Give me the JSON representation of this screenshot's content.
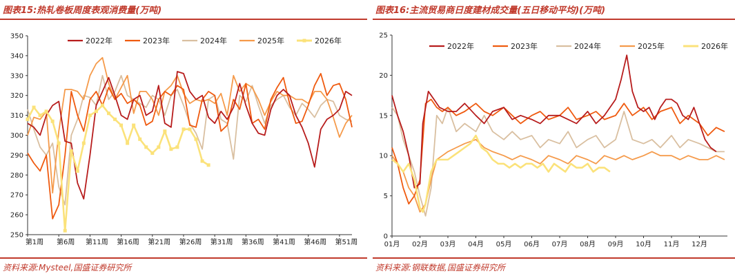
{
  "colors": {
    "2022": "#b71c1c",
    "2023": "#ef5a0f",
    "2024": "#d9bfa0",
    "2025": "#f59a4a",
    "2026": "#fbe27a"
  },
  "left": {
    "title": "图表15:热轧卷板周度表观消费量(万吨)",
    "source": "资料来源:Mysteel,国盛证券研究所",
    "chart_data": {
      "type": "line",
      "ylim": [
        250,
        350
      ],
      "yticks": [
        "250",
        "260",
        "270",
        "280",
        "290",
        "300",
        "310",
        "320",
        "330",
        "340",
        "350"
      ],
      "xlim": [
        1,
        53
      ],
      "xtick_positions": [
        1,
        6,
        11,
        16,
        21,
        26,
        31,
        36,
        41,
        46,
        51
      ],
      "xtick_labels": [
        "第1周",
        "第6周",
        "第11周",
        "第16周",
        "第21周",
        "第26周",
        "第31周",
        "第36周",
        "第41周",
        "第46周",
        "第51周"
      ],
      "legend": [
        "2022年",
        "2023年",
        "2024年",
        "2025年",
        "2026年"
      ],
      "series": [
        {
          "name": "2022年",
          "key": "2022",
          "values": [
            306,
            304,
            300,
            310,
            315,
            317,
            297,
            296,
            276,
            268,
            290,
            315,
            322,
            329,
            320,
            310,
            308,
            318,
            320,
            310,
            312,
            325,
            306,
            304,
            332,
            331,
            322,
            318,
            320,
            309,
            306,
            312,
            308,
            314,
            326,
            315,
            306,
            301,
            300,
            313,
            320,
            323,
            320,
            310,
            304,
            296,
            284,
            303,
            308,
            310,
            313,
            322,
            320
          ]
        },
        {
          "name": "2023年",
          "key": "2023",
          "values": [
            291,
            286,
            282,
            290,
            258,
            265,
            290,
            322,
            310,
            302,
            318,
            322,
            315,
            324,
            318,
            321,
            316,
            318,
            315,
            305,
            307,
            318,
            322,
            320,
            325,
            323,
            305,
            304,
            318,
            322,
            320,
            302,
            305,
            318,
            313,
            326,
            306,
            308,
            303,
            318,
            324,
            329,
            316,
            306,
            307,
            315,
            325,
            331,
            320,
            325,
            326,
            318,
            304
          ]
        },
        {
          "name": "2024年",
          "key": "2024",
          "values": [
            313,
            303,
            294,
            290,
            296,
            274,
            265,
            300,
            308,
            320,
            319,
            315,
            330,
            318,
            322,
            330,
            320,
            318,
            316,
            314,
            320,
            318,
            310,
            320,
            323,
            315,
            306,
            301,
            293,
            318,
            320,
            308,
            306,
            288,
            320,
            317,
            325,
            315,
            306,
            315,
            318,
            320,
            314,
            310,
            316,
            313,
            309,
            315,
            318,
            317,
            310,
            308,
            307
          ]
        },
        {
          "name": "2025年",
          "key": "2025",
          "values": [
            300,
            309,
            308,
            312,
            271,
            302,
            323,
            323,
            322,
            318,
            330,
            336,
            339,
            326,
            318,
            324,
            330,
            311,
            322,
            322,
            318,
            310,
            322,
            325,
            330,
            321,
            316,
            318,
            317,
            318,
            316,
            321,
            310,
            330,
            322,
            326,
            324,
            318,
            310,
            317,
            322,
            320,
            320,
            318,
            318,
            316,
            322,
            322,
            318,
            309,
            299,
            306,
            310
          ]
        },
        {
          "name": "2026年",
          "key": "2026",
          "values": [
            308,
            314,
            310,
            312,
            307,
            296,
            252,
            292,
            282,
            296,
            310,
            312,
            315,
            311,
            308,
            305,
            296,
            305,
            298,
            294,
            291,
            294,
            302,
            293,
            294,
            303,
            303,
            298,
            287,
            285
          ]
        }
      ]
    },
    "legend_labels": [
      "2022年",
      "2023年",
      "2024年",
      "2025年",
      "2026年"
    ]
  },
  "right": {
    "title": "图表16:主流贸易商日度建材成交量(五日移动平均)(万吨)",
    "source": "资料来源:钢联数据,国盛证券研究所",
    "chart_data": {
      "type": "line",
      "ylim": [
        0,
        25
      ],
      "yticks": [
        "0",
        "5",
        "10",
        "15",
        "20",
        "25"
      ],
      "xlim": [
        0,
        12
      ],
      "xtick_labels": [
        "01月",
        "02月",
        "03月",
        "04月",
        "05月",
        "06月",
        "07月",
        "08月",
        "09月",
        "10月",
        "11月",
        "12月"
      ],
      "legend": [
        "2022年",
        "2023年",
        "2024年",
        "2025年",
        "2026年"
      ],
      "series": [
        {
          "name": "2022年",
          "key": "2022",
          "x": [
            0,
            0.2,
            0.4,
            0.6,
            0.8,
            1,
            1.1,
            1.3,
            1.5,
            1.7,
            2,
            2.3,
            2.6,
            3,
            3.3,
            3.6,
            4,
            4.3,
            4.6,
            5,
            5.3,
            5.6,
            6,
            6.3,
            6.6,
            7,
            7.3,
            7.6,
            8,
            8.2,
            8.4,
            8.6,
            8.8,
            9,
            9.2,
            9.4,
            9.6,
            9.8,
            10,
            10.2,
            10.4,
            10.6,
            10.8,
            11,
            11.2,
            11.4,
            11.6
          ],
          "values": [
            17.5,
            15,
            13,
            10,
            6,
            6.5,
            14,
            18,
            17,
            16,
            15.5,
            15.5,
            16.5,
            15,
            14,
            15.5,
            16,
            14.5,
            15,
            14.5,
            14,
            15,
            15,
            14.5,
            14,
            15.5,
            14,
            15,
            17,
            19.5,
            22.5,
            18,
            16,
            15.5,
            16,
            14.5,
            16,
            17,
            17,
            16.5,
            15,
            14.5,
            16,
            14,
            12,
            11,
            10.5
          ]
        },
        {
          "name": "2023年",
          "key": "2023",
          "x": [
            0,
            0.2,
            0.4,
            0.6,
            0.8,
            1,
            1.2,
            1.4,
            1.6,
            1.8,
            2,
            2.3,
            2.6,
            3,
            3.3,
            3.6,
            4,
            4.3,
            4.6,
            5,
            5.3,
            5.6,
            6,
            6.3,
            6.6,
            7,
            7.3,
            7.6,
            8,
            8.3,
            8.6,
            9,
            9.3,
            9.6,
            10,
            10.3,
            10.6,
            11,
            11.3,
            11.6,
            11.9
          ],
          "values": [
            11,
            9,
            6,
            4,
            5,
            7,
            16.5,
            17,
            16,
            15.5,
            16,
            15,
            15.5,
            16.5,
            15.5,
            15,
            16,
            15,
            14,
            15,
            15.5,
            14.5,
            15,
            16,
            14.5,
            15,
            15.5,
            14.5,
            15,
            16.5,
            15,
            16,
            14.5,
            15.5,
            16,
            14,
            15,
            14,
            12.5,
            13.5,
            13
          ]
        },
        {
          "name": "2024年",
          "key": "2024",
          "x": [
            0,
            0.2,
            0.4,
            0.6,
            0.8,
            1,
            1.2,
            1.4,
            1.6,
            1.8,
            2,
            2.3,
            2.6,
            3,
            3.3,
            3.6,
            4,
            4.3,
            4.6,
            5,
            5.3,
            5.6,
            6,
            6.3,
            6.6,
            7,
            7.3,
            7.6,
            8,
            8.3,
            8.6,
            9,
            9.3,
            9.6,
            10,
            10.3,
            10.6,
            11,
            11.3,
            11.6,
            11.9
          ],
          "values": [
            16,
            15,
            12,
            10,
            8,
            5,
            2.5,
            6,
            15,
            14,
            16,
            13,
            14,
            13,
            15,
            13,
            12,
            13,
            12,
            12.5,
            11,
            12,
            11.5,
            13,
            11,
            12,
            12.5,
            11,
            12,
            15.5,
            12,
            11.5,
            12,
            11,
            12.5,
            11,
            12,
            11.5,
            11,
            10.5,
            10.5
          ]
        },
        {
          "name": "2025年",
          "key": "2025",
          "x": [
            0,
            0.2,
            0.4,
            0.6,
            0.8,
            1,
            1.2,
            1.4,
            1.6,
            1.8,
            2,
            2.3,
            2.6,
            3,
            3.3,
            3.6,
            4,
            4.3,
            4.6,
            5,
            5.3,
            5.6,
            6,
            6.3,
            6.6,
            7,
            7.3,
            7.6,
            8,
            8.3,
            8.6,
            9,
            9.3,
            9.6,
            10,
            10.3,
            10.6,
            11,
            11.3,
            11.6,
            11.9
          ],
          "values": [
            10,
            9,
            8,
            6,
            5,
            3,
            4,
            7,
            9.5,
            10,
            10.5,
            11,
            11.5,
            12,
            11,
            10.5,
            10,
            9.5,
            10,
            9.5,
            9,
            10,
            9.5,
            9,
            10,
            9.5,
            9,
            10,
            9.5,
            10,
            9.5,
            10,
            10.5,
            10,
            10,
            9.5,
            10,
            9.5,
            9.5,
            10,
            9.5
          ]
        },
        {
          "name": "2026年",
          "key": "2026",
          "x": [
            0,
            0.2,
            0.4,
            0.6,
            0.8,
            1,
            1.1,
            1.2,
            1.4,
            1.6,
            1.8,
            2,
            2.2,
            2.4,
            2.6,
            2.8,
            3,
            3.2,
            3.4,
            3.6,
            3.8,
            4,
            4.2,
            4.4,
            4.6,
            4.8,
            5,
            5.2,
            5.4,
            5.6,
            5.8,
            6,
            6.2,
            6.4,
            6.6,
            6.8,
            7,
            7.2,
            7.4,
            7.6,
            7.8
          ],
          "values": [
            9.5,
            9,
            8,
            9,
            7,
            3.5,
            3,
            4,
            8,
            9.5,
            9.5,
            9.5,
            10,
            10.5,
            11,
            11.5,
            12.5,
            11,
            10.5,
            9.5,
            9,
            9,
            8.5,
            9,
            8.5,
            9,
            9,
            8.5,
            9,
            8,
            9,
            8.5,
            8,
            9,
            8.5,
            8.5,
            9,
            8,
            8.5,
            8.5,
            8
          ]
        }
      ]
    },
    "legend_labels": [
      "2022年",
      "2023年",
      "2024年",
      "2025年",
      "2026年"
    ]
  }
}
